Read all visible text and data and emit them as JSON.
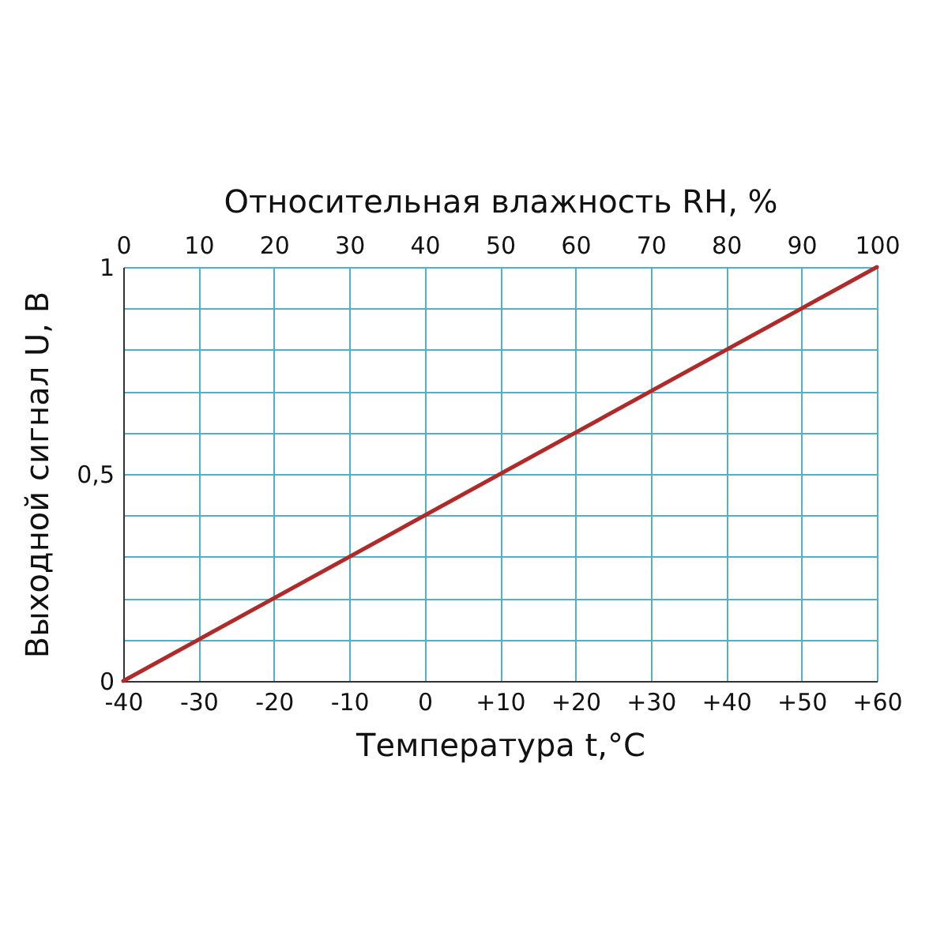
{
  "chart_data": {
    "type": "line",
    "xlabel": "Температура t,°C",
    "ylabel": "Выходной сигнал U, В",
    "x2label": "Относительная влажность RH, %",
    "x": [
      -40,
      60
    ],
    "series": [
      {
        "color": "#b02a2a",
        "values": [
          0,
          1
        ]
      }
    ],
    "xlim": [
      -40,
      60
    ],
    "xticks": [
      -40,
      -30,
      -20,
      -10,
      0,
      {
        "value": 10,
        "label": "+10"
      },
      {
        "value": 20,
        "label": "+20"
      },
      {
        "value": 30,
        "label": "+30"
      },
      {
        "value": 40,
        "label": "+40"
      },
      {
        "value": 50,
        "label": "+50"
      },
      {
        "value": 60,
        "label": "+60"
      }
    ],
    "x2lim": [
      0,
      100
    ],
    "x2ticks": [
      0,
      10,
      20,
      30,
      40,
      50,
      60,
      70,
      80,
      90,
      100
    ],
    "ylim": [
      0,
      1
    ],
    "yticks": [
      0,
      {
        "value": 0.1,
        "label": null
      },
      {
        "value": 0.2,
        "label": null
      },
      {
        "value": 0.3,
        "label": null
      },
      {
        "value": 0.4,
        "label": null
      },
      {
        "value": 0.5,
        "label": "0,5"
      },
      {
        "value": 0.6,
        "label": null
      },
      {
        "value": 0.7,
        "label": null
      },
      {
        "value": 0.8,
        "label": null
      },
      {
        "value": 0.9,
        "label": null
      },
      1
    ],
    "grid": true,
    "marker": "none",
    "line_style": "solid"
  }
}
